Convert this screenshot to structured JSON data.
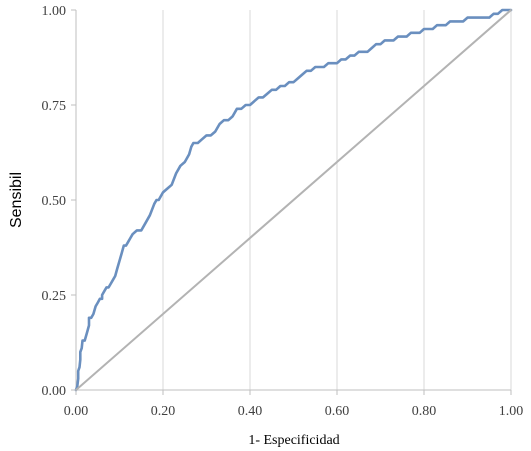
{
  "chart_data": {
    "type": "line",
    "xlabel": "1- Especificidad",
    "ylabel": "Sensibil",
    "xlim": [
      0,
      1
    ],
    "ylim": [
      0,
      1
    ],
    "x_ticks": [
      "0.00",
      "0.20",
      "0.40",
      "0.60",
      "0.80",
      "1.00"
    ],
    "y_ticks": [
      "0.00",
      "0.25",
      "0.50",
      "0.75",
      "1.00"
    ],
    "grid": "vertical",
    "legend": "none",
    "colors": {
      "roc": "#6a8fbf",
      "reference": "#b3b3b3",
      "grid": "#d9d9d9",
      "axis": "#bfbfbf"
    },
    "series": [
      {
        "kind": "roc",
        "x": [
          0.0,
          0.003,
          0.005,
          0.005,
          0.008,
          0.01,
          0.01,
          0.013,
          0.015,
          0.015,
          0.02,
          0.025,
          0.03,
          0.03,
          0.035,
          0.04,
          0.045,
          0.05,
          0.055,
          0.06,
          0.06,
          0.065,
          0.07,
          0.075,
          0.08,
          0.085,
          0.09,
          0.095,
          0.1,
          0.105,
          0.11,
          0.115,
          0.12,
          0.125,
          0.13,
          0.14,
          0.15,
          0.16,
          0.17,
          0.18,
          0.185,
          0.19,
          0.19,
          0.195,
          0.2,
          0.21,
          0.22,
          0.23,
          0.24,
          0.25,
          0.26,
          0.265,
          0.27,
          0.28,
          0.29,
          0.3,
          0.31,
          0.32,
          0.33,
          0.34,
          0.35,
          0.36,
          0.37,
          0.38,
          0.39,
          0.4,
          0.41,
          0.42,
          0.43,
          0.44,
          0.45,
          0.46,
          0.47,
          0.48,
          0.49,
          0.5,
          0.51,
          0.52,
          0.53,
          0.54,
          0.55,
          0.56,
          0.57,
          0.58,
          0.59,
          0.6,
          0.61,
          0.62,
          0.63,
          0.64,
          0.65,
          0.66,
          0.67,
          0.68,
          0.69,
          0.7,
          0.71,
          0.72,
          0.73,
          0.74,
          0.75,
          0.76,
          0.77,
          0.78,
          0.79,
          0.8,
          0.81,
          0.82,
          0.83,
          0.84,
          0.85,
          0.86,
          0.87,
          0.88,
          0.89,
          0.9,
          0.91,
          0.92,
          0.93,
          0.94,
          0.95,
          0.96,
          0.97,
          0.98,
          0.99,
          1.0
        ],
        "y": [
          0.0,
          0.01,
          0.03,
          0.05,
          0.06,
          0.08,
          0.1,
          0.11,
          0.13,
          0.13,
          0.13,
          0.15,
          0.17,
          0.19,
          0.19,
          0.2,
          0.22,
          0.23,
          0.24,
          0.24,
          0.25,
          0.26,
          0.27,
          0.27,
          0.28,
          0.29,
          0.3,
          0.32,
          0.34,
          0.36,
          0.38,
          0.38,
          0.39,
          0.4,
          0.41,
          0.42,
          0.42,
          0.44,
          0.46,
          0.49,
          0.5,
          0.5,
          0.5,
          0.51,
          0.52,
          0.53,
          0.54,
          0.57,
          0.59,
          0.6,
          0.62,
          0.64,
          0.65,
          0.65,
          0.66,
          0.67,
          0.67,
          0.68,
          0.7,
          0.71,
          0.71,
          0.72,
          0.74,
          0.74,
          0.75,
          0.75,
          0.76,
          0.77,
          0.77,
          0.78,
          0.79,
          0.79,
          0.8,
          0.8,
          0.81,
          0.81,
          0.82,
          0.83,
          0.84,
          0.84,
          0.85,
          0.85,
          0.85,
          0.86,
          0.86,
          0.86,
          0.87,
          0.87,
          0.88,
          0.88,
          0.89,
          0.89,
          0.89,
          0.9,
          0.91,
          0.91,
          0.92,
          0.92,
          0.92,
          0.93,
          0.93,
          0.93,
          0.94,
          0.94,
          0.94,
          0.95,
          0.95,
          0.95,
          0.96,
          0.96,
          0.96,
          0.97,
          0.97,
          0.97,
          0.97,
          0.98,
          0.98,
          0.98,
          0.98,
          0.98,
          0.98,
          0.99,
          0.99,
          1.0,
          1.0,
          1.0
        ]
      },
      {
        "kind": "reference",
        "x": [
          0,
          1
        ],
        "y": [
          0,
          1
        ]
      }
    ]
  }
}
